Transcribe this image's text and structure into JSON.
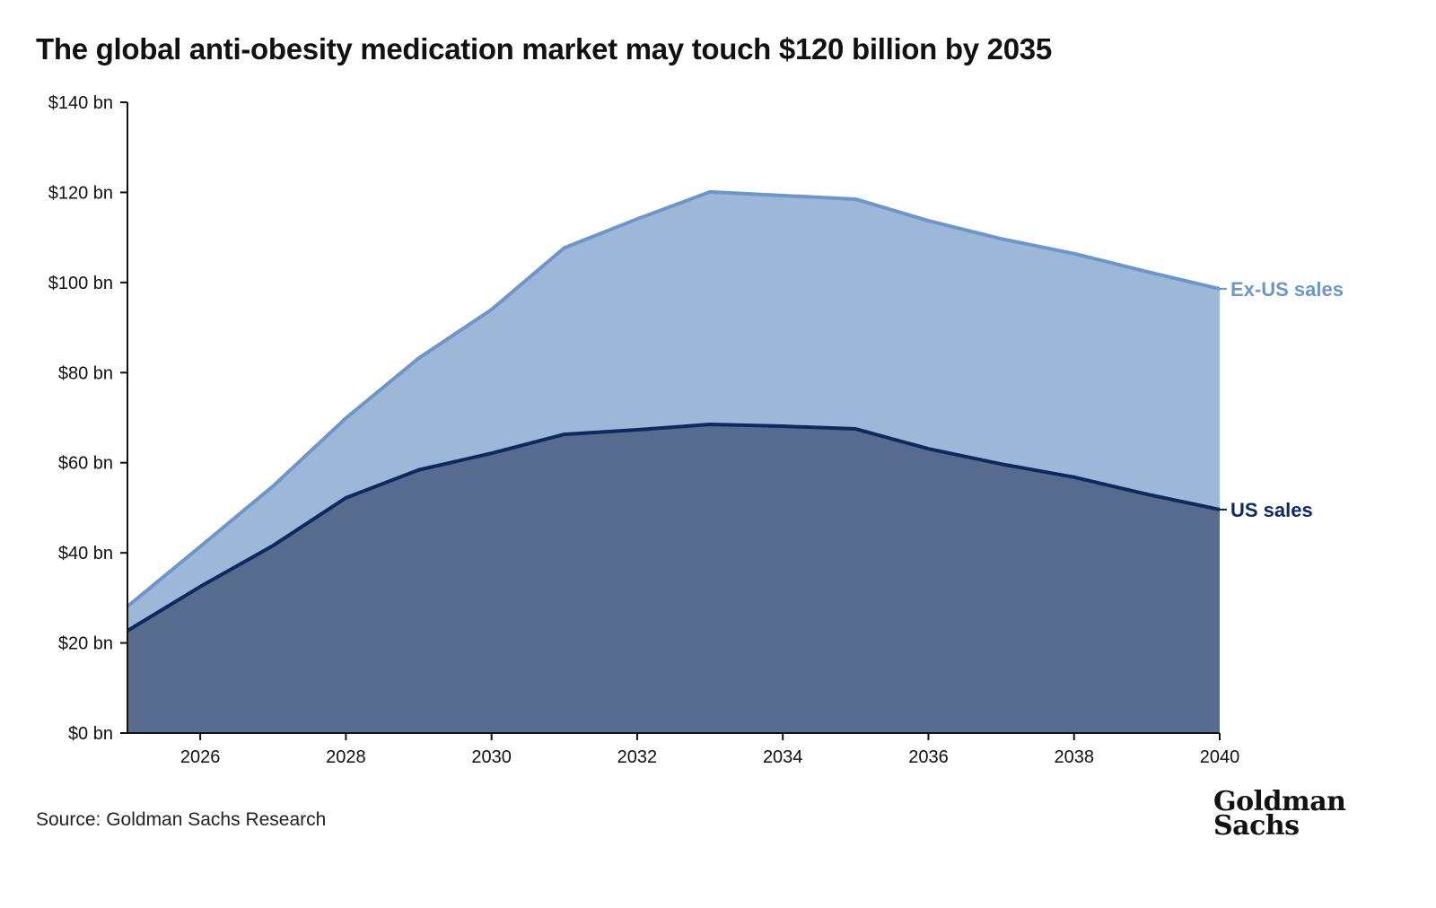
{
  "title": "The global anti-obesity medication market may touch $120 billion by 2035",
  "source": "Source: Goldman Sachs Research",
  "logo": {
    "line1": "Goldman",
    "line2": "Sachs"
  },
  "colors": {
    "us_fill": "#576b8f",
    "us_line": "#0d2a5e",
    "exus_fill": "#9db7d8",
    "exus_line": "#6e96c8"
  },
  "chart_data": {
    "type": "area",
    "stacked": true,
    "title": "The global anti-obesity medication market may touch $120 billion by 2035",
    "xlabel": "",
    "ylabel": "",
    "x": [
      2025,
      2026,
      2027,
      2028,
      2029,
      2030,
      2031,
      2032,
      2033,
      2034,
      2035,
      2036,
      2037,
      2038,
      2039,
      2040
    ],
    "xlim": [
      2025,
      2040
    ],
    "ylim": [
      0,
      140
    ],
    "x_ticks": [
      "2026",
      "2028",
      "2030",
      "2032",
      "2034",
      "2036",
      "2038",
      "2040"
    ],
    "y_ticks": [
      "$0 bn",
      "$20 bn",
      "$40 bn",
      "$60 bn",
      "$80 bn",
      "$100 bn",
      "$120 bn",
      "$140 bn"
    ],
    "grid": false,
    "series": [
      {
        "name": "US sales",
        "values": [
          22.7,
          32.5,
          41.6,
          52.2,
          58.4,
          62.1,
          66.3,
          67.3,
          68.5,
          68.1,
          67.5,
          63.1,
          59.7,
          56.8,
          53.0,
          49.6
        ]
      },
      {
        "name": "Ex-US sales",
        "values": [
          5.4,
          8.9,
          13.2,
          17.7,
          24.8,
          31.9,
          41.4,
          46.8,
          51.6,
          51.2,
          51.0,
          50.6,
          50.0,
          49.6,
          49.4,
          49.0
        ]
      }
    ],
    "legend": "inline-right"
  }
}
